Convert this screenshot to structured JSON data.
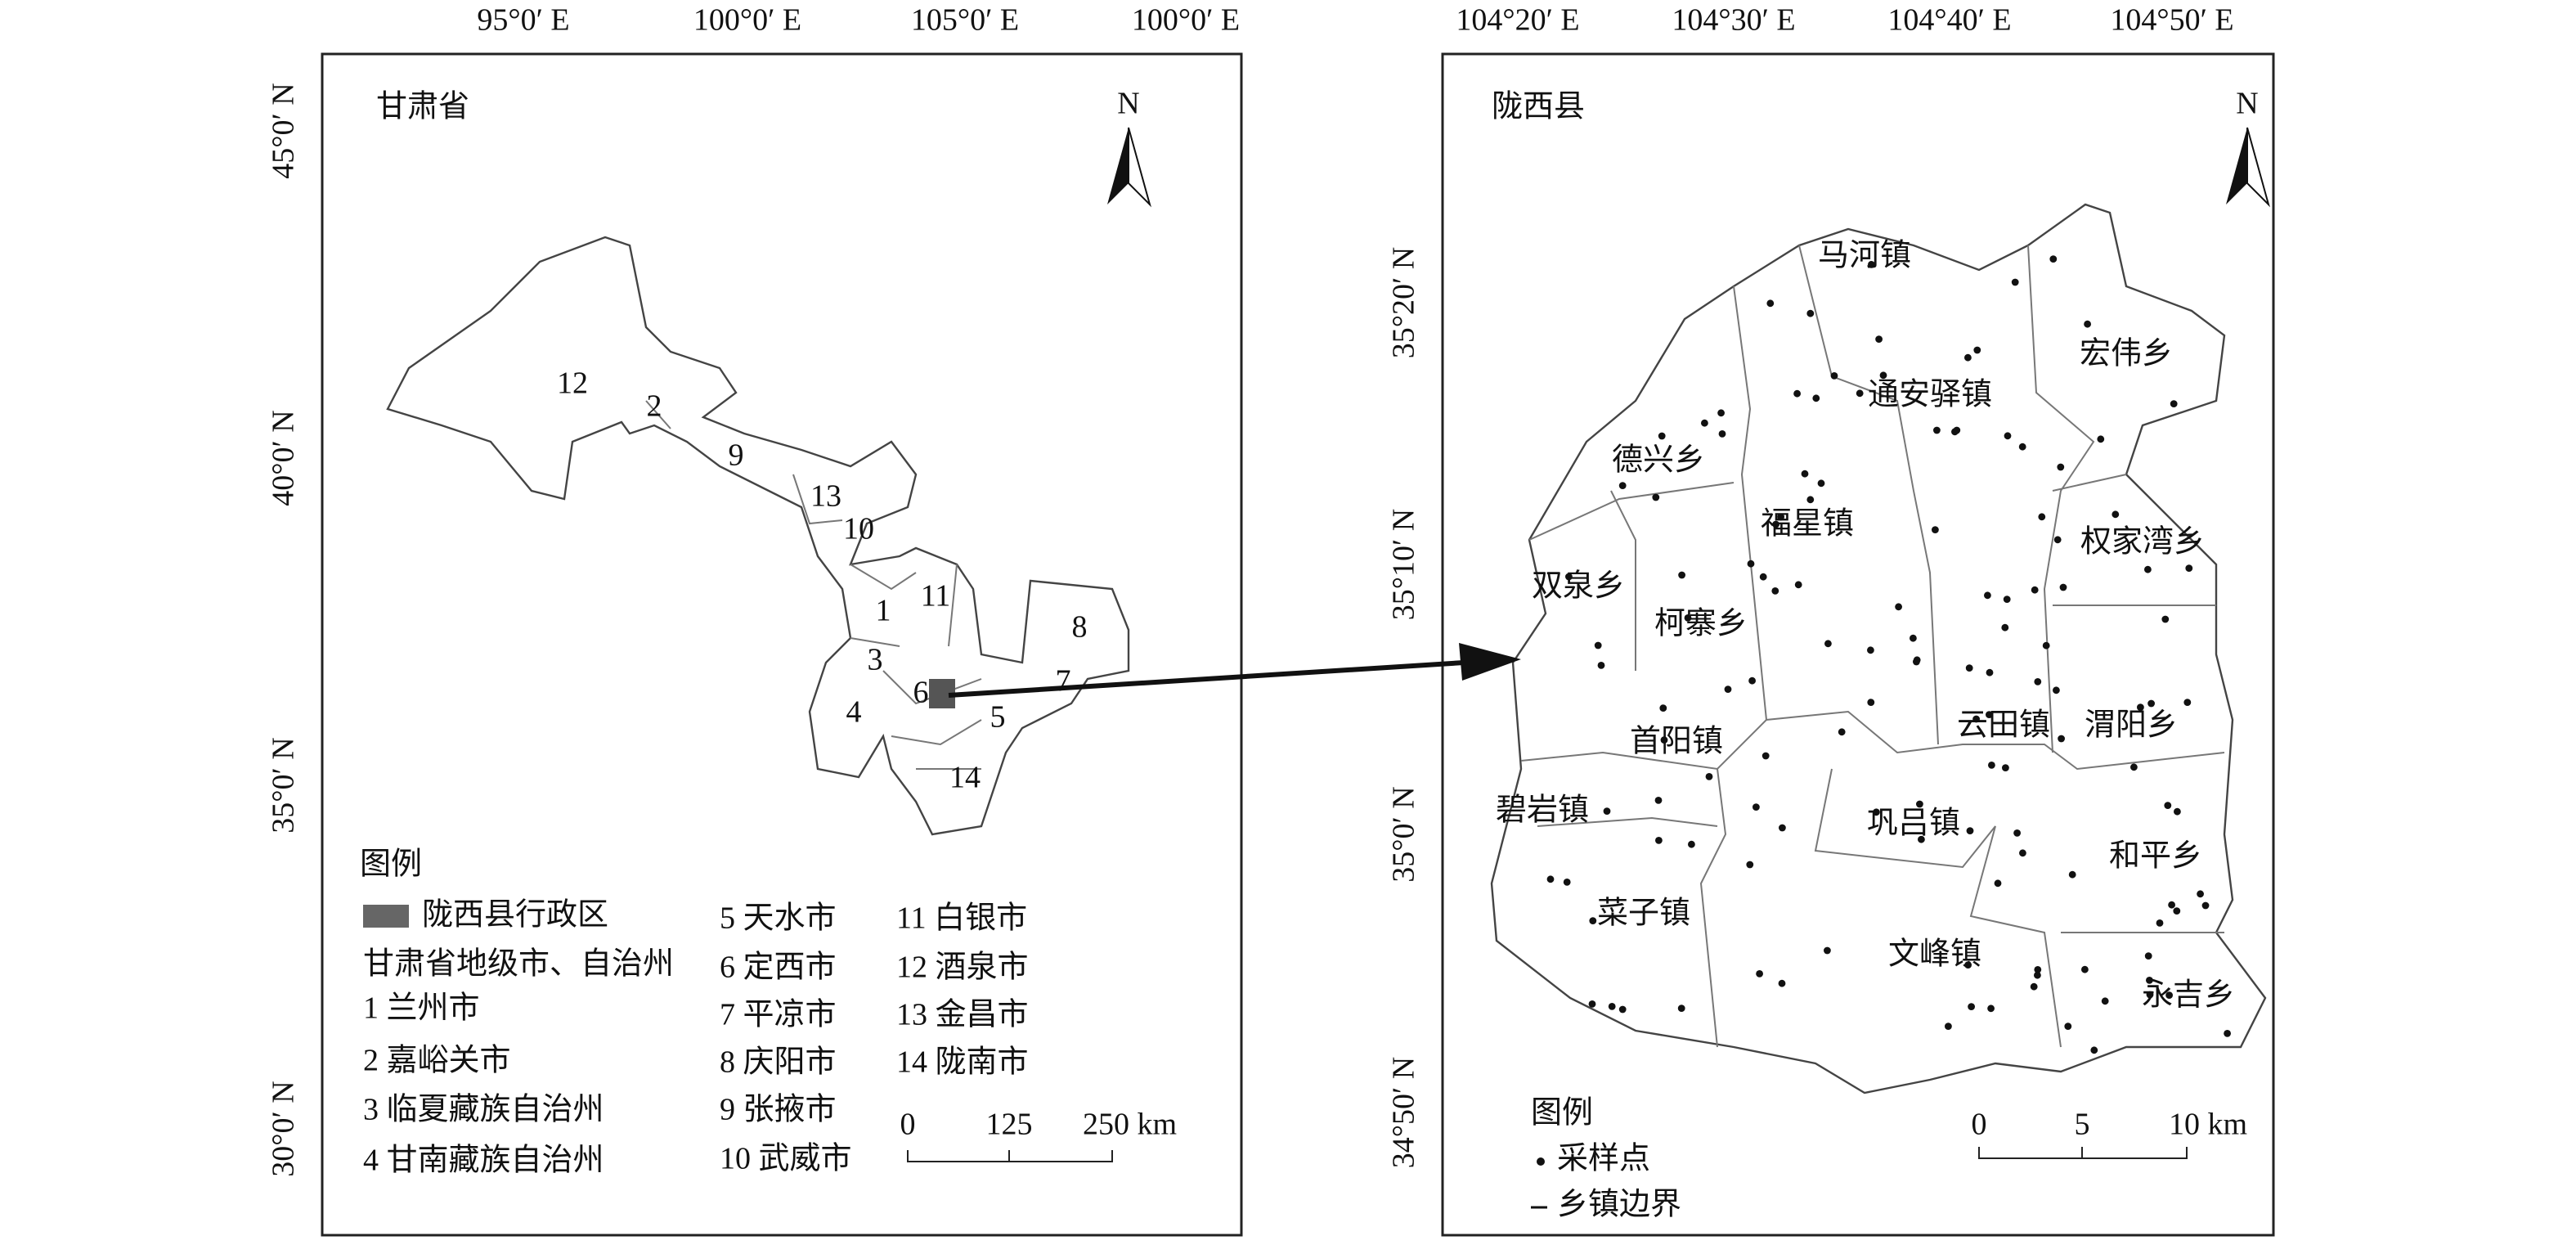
{
  "left_map": {
    "title": "甘肃省",
    "north": "N",
    "lon_ticks": [
      "95°0′ E",
      "100°0′ E",
      "105°0′ E",
      "100°0′ E"
    ],
    "lat_ticks": [
      "45°0′ N",
      "40°0′ N",
      "35°0′ N",
      "30°0′ N"
    ],
    "region_labels": [
      "12",
      "2",
      "9",
      "13",
      "10",
      "1",
      "11",
      "8",
      "3",
      "6",
      "7",
      "4",
      "5",
      "14"
    ],
    "legend": {
      "title": "图例",
      "items": [
        "陇西县行政区",
        "甘肃省地级市、自治州",
        "1 兰州市",
        "2 嘉峪关市",
        "3 临夏藏族自治州",
        "4 甘南藏族自治州",
        "5 天水市",
        "6 定西市",
        "7 平凉市",
        "8 庆阳市",
        "9 张掖市",
        "10 武威市",
        "11 白银市",
        "12 酒泉市",
        "13 金昌市",
        "14 陇南市"
      ]
    },
    "scale": [
      "0",
      "125",
      "250 km"
    ]
  },
  "right_map": {
    "title": "陇西县",
    "north": "N",
    "lon_ticks": [
      "104°20′ E",
      "104°30′ E",
      "104°40′ E",
      "104°50′ E"
    ],
    "lat_ticks": [
      "35°20′ N",
      "35°10′ N",
      "35°0′ N",
      "34°50′ N"
    ],
    "town_labels": [
      "马河镇",
      "通安驿镇",
      "宏伟乡",
      "德兴乡",
      "福星镇",
      "权家湾乡",
      "双泉乡",
      "柯寨乡",
      "云田镇",
      "渭阳乡",
      "首阳镇",
      "碧岩镇",
      "巩吕镇",
      "和平乡",
      "菜子镇",
      "文峰镇",
      "永吉乡"
    ],
    "legend": {
      "title": "图例",
      "items": [
        "采样点",
        "乡镇边界"
      ]
    },
    "scale": [
      "0",
      "5",
      "10 km"
    ]
  }
}
